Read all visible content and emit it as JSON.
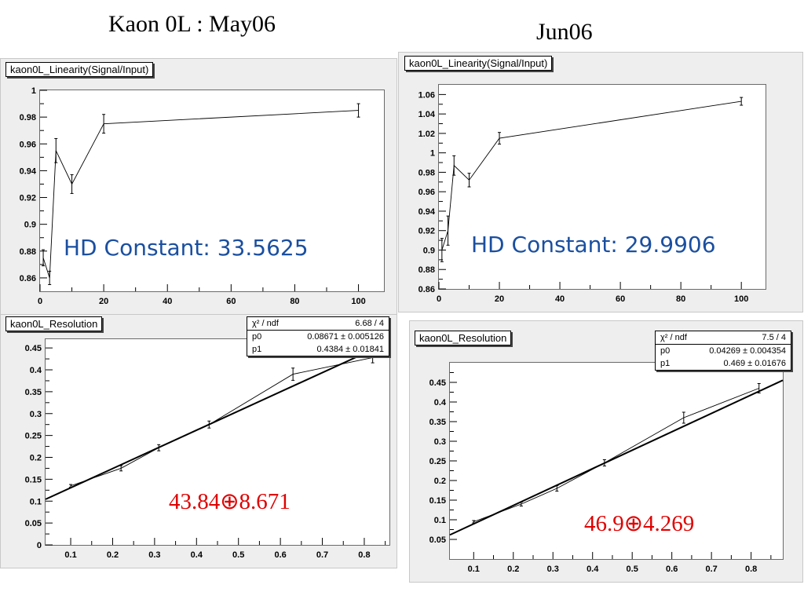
{
  "headings": {
    "left": "Kaon 0L  : May06",
    "right": "Jun06"
  },
  "chart_data": [
    {
      "id": "may_linearity",
      "type": "line",
      "title": "kaon0L_Linearity(Signal/Input)",
      "xlabel": "",
      "ylabel": "",
      "xlim": [
        0,
        108
      ],
      "ylim": [
        0.85,
        1.0
      ],
      "xticks": [
        0,
        20,
        40,
        60,
        80,
        100
      ],
      "yticks": [
        0.86,
        0.88,
        0.9,
        0.92,
        0.94,
        0.96,
        0.98,
        1
      ],
      "points": [
        {
          "x": 1,
          "y": 0.875,
          "err": 0.006
        },
        {
          "x": 3,
          "y": 0.86,
          "err": 0.005
        },
        {
          "x": 5,
          "y": 0.955,
          "err": 0.009
        },
        {
          "x": 10,
          "y": 0.93,
          "err": 0.007
        },
        {
          "x": 20,
          "y": 0.975,
          "err": 0.007
        },
        {
          "x": 100,
          "y": 0.985,
          "err": 0.005
        }
      ],
      "annotation": "HD Constant: 33.5625"
    },
    {
      "id": "jun_linearity",
      "type": "line",
      "title": "kaon0L_Linearity(Signal/Input)",
      "xlabel": "",
      "ylabel": "",
      "xlim": [
        0,
        108
      ],
      "ylim": [
        0.86,
        1.07
      ],
      "xticks": [
        0,
        20,
        40,
        60,
        80,
        100
      ],
      "yticks": [
        0.86,
        0.88,
        0.9,
        0.92,
        0.94,
        0.96,
        0.98,
        1,
        1.02,
        1.04,
        1.06
      ],
      "points": [
        {
          "x": 1,
          "y": 0.9,
          "err": 0.012
        },
        {
          "x": 3,
          "y": 0.92,
          "err": 0.015
        },
        {
          "x": 5,
          "y": 0.987,
          "err": 0.01
        },
        {
          "x": 10,
          "y": 0.972,
          "err": 0.007
        },
        {
          "x": 20,
          "y": 1.015,
          "err": 0.006
        },
        {
          "x": 100,
          "y": 1.053,
          "err": 0.004
        }
      ],
      "annotation": "HD Constant: 29.9906"
    },
    {
      "id": "may_resolution",
      "type": "scatter",
      "title": "kaon0L_Resolution",
      "xlabel": "",
      "ylabel": "",
      "xlim": [
        0.04,
        0.86
      ],
      "ylim": [
        0,
        0.47
      ],
      "xticks": [
        0.1,
        0.2,
        0.3,
        0.4,
        0.5,
        0.6,
        0.7,
        0.8
      ],
      "yticks": [
        0,
        0.05,
        0.1,
        0.15,
        0.2,
        0.25,
        0.3,
        0.35,
        0.4,
        0.45
      ],
      "points": [
        {
          "x": 0.1,
          "y": 0.135,
          "err": 0.003
        },
        {
          "x": 0.22,
          "y": 0.175,
          "err": 0.006
        },
        {
          "x": 0.31,
          "y": 0.222,
          "err": 0.007
        },
        {
          "x": 0.43,
          "y": 0.275,
          "err": 0.008
        },
        {
          "x": 0.63,
          "y": 0.39,
          "err": 0.014
        },
        {
          "x": 0.82,
          "y": 0.428,
          "err": 0.012
        }
      ],
      "fit": {
        "p0": 0.08671,
        "p1": 0.4384
      },
      "stats": {
        "header_label": "χ² / ndf",
        "header_value": "6.68 / 4",
        "rows": [
          {
            "label": "p0",
            "value": "0.08671 ± 0.005126"
          },
          {
            "label": "p1",
            "value": "0.4384 ± 0.01841"
          }
        ]
      },
      "annotation": "43.84⊕8.671"
    },
    {
      "id": "jun_resolution",
      "type": "scatter",
      "title": "kaon0L_Resolution",
      "xlabel": "",
      "ylabel": "",
      "xlim": [
        0.04,
        0.88
      ],
      "ylim": [
        0,
        0.5
      ],
      "xticks": [
        0.1,
        0.2,
        0.3,
        0.4,
        0.5,
        0.6,
        0.7,
        0.8
      ],
      "yticks": [
        0.05,
        0.1,
        0.15,
        0.2,
        0.25,
        0.3,
        0.35,
        0.4,
        0.45
      ],
      "points": [
        {
          "x": 0.1,
          "y": 0.095,
          "err": 0.003
        },
        {
          "x": 0.22,
          "y": 0.14,
          "err": 0.005
        },
        {
          "x": 0.31,
          "y": 0.18,
          "err": 0.007
        },
        {
          "x": 0.43,
          "y": 0.245,
          "err": 0.008
        },
        {
          "x": 0.63,
          "y": 0.36,
          "err": 0.014
        },
        {
          "x": 0.82,
          "y": 0.435,
          "err": 0.012
        }
      ],
      "fit": {
        "p0": 0.04269,
        "p1": 0.469
      },
      "stats": {
        "header_label": "χ² / ndf",
        "header_value": "7.5 / 4",
        "rows": [
          {
            "label": "p0",
            "value": "0.04269 ± 0.004354"
          },
          {
            "label": "p1",
            "value": "0.469 ± 0.01676"
          }
        ]
      },
      "annotation": "46.9⊕4.269"
    }
  ]
}
